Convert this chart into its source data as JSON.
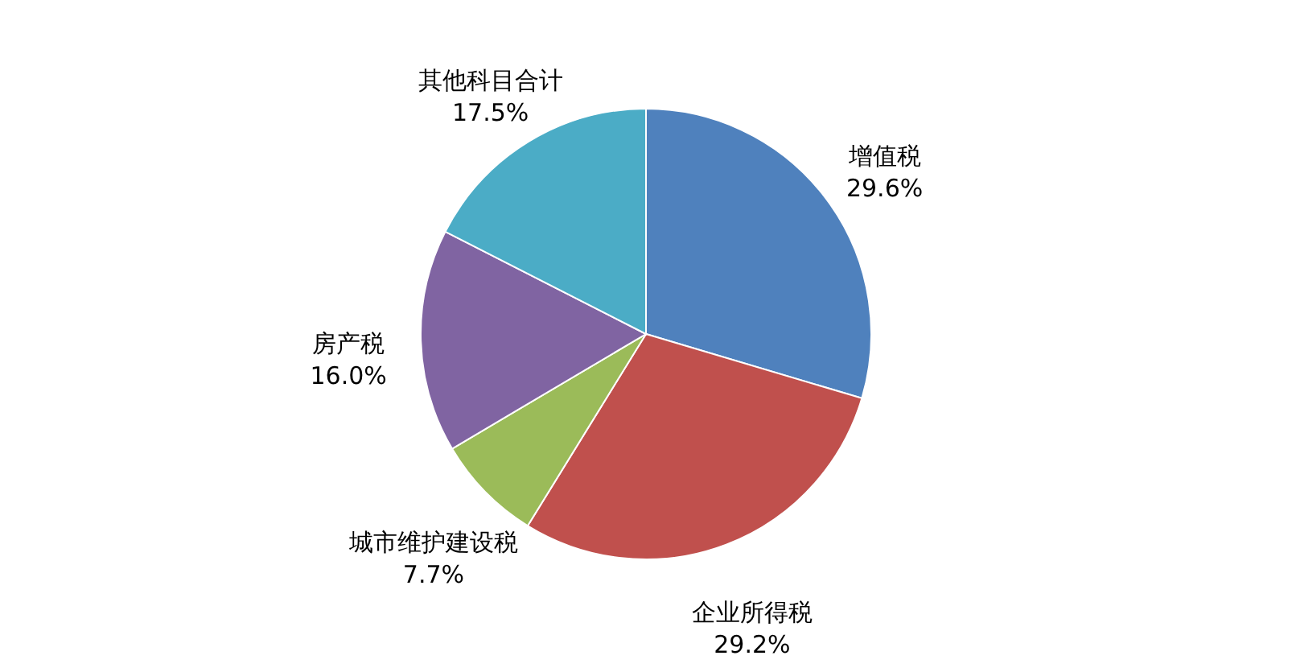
{
  "chart_data": {
    "type": "pie",
    "categories": [
      "增值税",
      "企业所得税",
      "城市维护建设税",
      "房产税",
      "其他科目合计"
    ],
    "values": [
      29.6,
      29.2,
      7.7,
      16.0,
      17.5
    ],
    "value_labels": [
      "29.6%",
      "29.2%",
      "7.7%",
      "16.0%",
      "17.5%"
    ],
    "colors": [
      "#4f81bd",
      "#c0504d",
      "#9bbb59",
      "#8064a2",
      "#4bacc6"
    ]
  }
}
